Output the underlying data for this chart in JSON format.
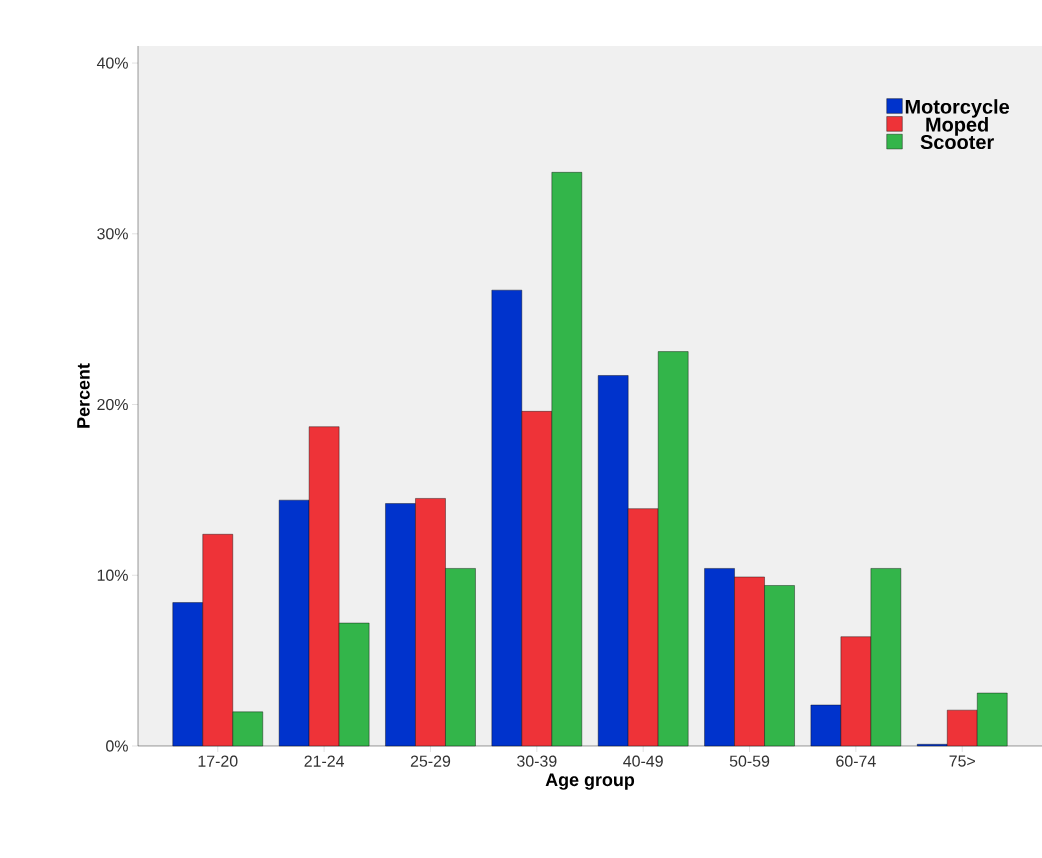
{
  "chart_data": {
    "type": "bar",
    "xlabel": "Age group",
    "ylabel": "Percent",
    "categories": [
      "17-20",
      "21-24",
      "25-29",
      "30-39",
      "40-49",
      "50-59",
      "60-74",
      "75>"
    ],
    "series": [
      {
        "name": "Motorcycle",
        "color": "#0033cc",
        "values": [
          8.4,
          14.4,
          14.2,
          26.7,
          21.7,
          10.4,
          2.4,
          0.1
        ]
      },
      {
        "name": "Moped",
        "color": "#ee3338",
        "values": [
          12.4,
          18.7,
          14.5,
          19.6,
          13.9,
          9.9,
          6.4,
          2.1
        ]
      },
      {
        "name": "Scooter",
        "color": "#33b54a",
        "values": [
          2.0,
          7.2,
          10.4,
          33.6,
          23.1,
          9.4,
          10.4,
          3.1
        ]
      }
    ],
    "ylim": [
      0,
      41
    ],
    "yticks": [
      {
        "value": 0,
        "label": "0%"
      },
      {
        "value": 10,
        "label": "10%"
      },
      {
        "value": 20,
        "label": "20%"
      },
      {
        "value": 30,
        "label": "30%"
      },
      {
        "value": 40,
        "label": "40%"
      }
    ],
    "grid": false,
    "legend": "top right"
  }
}
